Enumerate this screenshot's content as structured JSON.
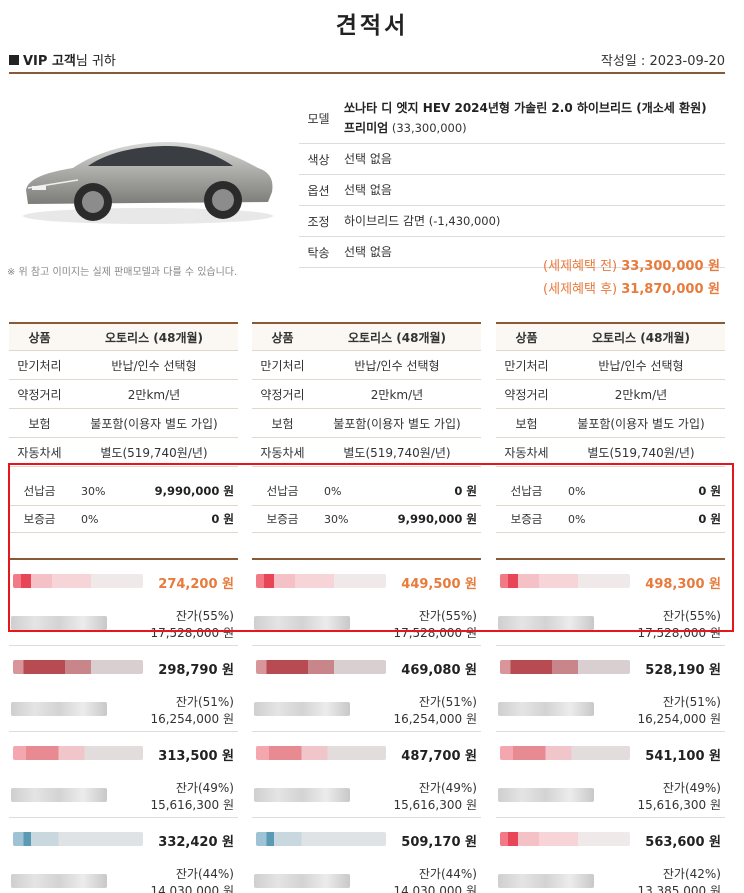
{
  "title": "견적서",
  "header": {
    "customer_bold": "VIP 고객",
    "customer_suffix": "님 귀하",
    "date": "작성일 : 2023-09-20"
  },
  "image_note": "※ 위 참고 이미지는 실제 판매모델과 다를 수 있습니다.",
  "spec": [
    {
      "label": "모델",
      "value": "쏘나타 디 엣지 HEV 2024년형 가솔린 2.0 하이브리드 (개소세 환원) 프리미엄",
      "extra": " (33,300,000)"
    },
    {
      "label": "색상",
      "value": "선택 없음",
      "extra": ""
    },
    {
      "label": "옵션",
      "value": "선택 없음",
      "extra": ""
    },
    {
      "label": "조정",
      "value": "하이브리드 감면",
      "extra": " (-1,430,000)"
    },
    {
      "label": "탁송",
      "value": "선택 없음",
      "extra": ""
    }
  ],
  "prices": [
    {
      "label": "(세제혜택 전) ",
      "amount": "33,300,000 원"
    },
    {
      "label": "(세제혜택 후) ",
      "amount": "31,870,000 원"
    }
  ],
  "colors": {
    "accent": "#8a5a36",
    "highlight": "#e87a3c",
    "box": "#e5161c"
  },
  "columns": [
    {
      "rows": [
        {
          "k": "상품",
          "v": "오토리스 (48개월)"
        },
        {
          "k": "만기처리",
          "v": "반납/인수 선택형"
        },
        {
          "k": "약정거리",
          "v": "2만km/년"
        },
        {
          "k": "보험",
          "v": "불포함(이용자 별도 가입)"
        },
        {
          "k": "자동차세",
          "v": "별도(519,740원/년)"
        }
      ],
      "deposits": [
        {
          "k": "선납금",
          "pct": "30%",
          "amt": "9,990,000 원"
        },
        {
          "k": "보증금",
          "pct": "0%",
          "amt": "0 원"
        }
      ],
      "options": [
        {
          "pay": "274,200 원",
          "res": "잔가(55%)",
          "resamt": "17,528,000 원",
          "hl": true,
          "tint": "red"
        },
        {
          "pay": "298,790 원",
          "res": "잔가(51%)",
          "resamt": "16,254,000 원",
          "hl": false,
          "tint": "darkred"
        },
        {
          "pay": "313,500 원",
          "res": "잔가(49%)",
          "resamt": "15,616,300 원",
          "hl": false,
          "tint": "pink"
        },
        {
          "pay": "332,420 원",
          "res": "잔가(44%)",
          "resamt": "14,030,000 원",
          "hl": false,
          "tint": "blue"
        }
      ]
    },
    {
      "rows": [
        {
          "k": "상품",
          "v": "오토리스 (48개월)"
        },
        {
          "k": "만기처리",
          "v": "반납/인수 선택형"
        },
        {
          "k": "약정거리",
          "v": "2만km/년"
        },
        {
          "k": "보험",
          "v": "불포함(이용자 별도 가입)"
        },
        {
          "k": "자동차세",
          "v": "별도(519,740원/년)"
        }
      ],
      "deposits": [
        {
          "k": "선납금",
          "pct": "0%",
          "amt": "0 원"
        },
        {
          "k": "보증금",
          "pct": "30%",
          "amt": "9,990,000 원"
        }
      ],
      "options": [
        {
          "pay": "449,500 원",
          "res": "잔가(55%)",
          "resamt": "17,528,000 원",
          "hl": true,
          "tint": "red"
        },
        {
          "pay": "469,080 원",
          "res": "잔가(51%)",
          "resamt": "16,254,000 원",
          "hl": false,
          "tint": "darkred"
        },
        {
          "pay": "487,700 원",
          "res": "잔가(49%)",
          "resamt": "15,616,300 원",
          "hl": false,
          "tint": "pink"
        },
        {
          "pay": "509,170 원",
          "res": "잔가(44%)",
          "resamt": "14,030,000 원",
          "hl": false,
          "tint": "blue"
        }
      ]
    },
    {
      "rows": [
        {
          "k": "상품",
          "v": "오토리스 (48개월)"
        },
        {
          "k": "만기처리",
          "v": "반납/인수 선택형"
        },
        {
          "k": "약정거리",
          "v": "2만km/년"
        },
        {
          "k": "보험",
          "v": "불포함(이용자 별도 가입)"
        },
        {
          "k": "자동차세",
          "v": "별도(519,740원/년)"
        }
      ],
      "deposits": [
        {
          "k": "선납금",
          "pct": "0%",
          "amt": "0 원"
        },
        {
          "k": "보증금",
          "pct": "0%",
          "amt": "0 원"
        }
      ],
      "options": [
        {
          "pay": "498,300 원",
          "res": "잔가(55%)",
          "resamt": "17,528,000 원",
          "hl": true,
          "tint": "red"
        },
        {
          "pay": "528,190 원",
          "res": "잔가(51%)",
          "resamt": "16,254,000 원",
          "hl": false,
          "tint": "darkred"
        },
        {
          "pay": "541,100 원",
          "res": "잔가(49%)",
          "resamt": "15,616,300 원",
          "hl": false,
          "tint": "pink"
        },
        {
          "pay": "563,600 원",
          "res": "잔가(42%)",
          "resamt": "13,385,000 원",
          "hl": false,
          "tint": "red"
        }
      ]
    }
  ]
}
